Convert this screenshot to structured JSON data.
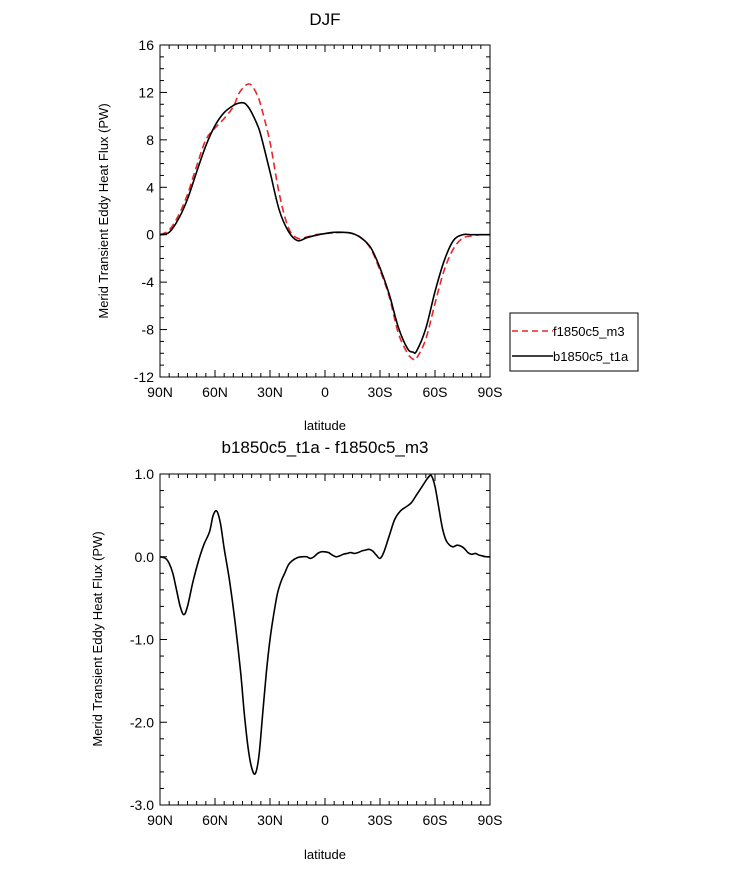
{
  "chart_data": [
    {
      "type": "line",
      "title": "DJF",
      "xlabel": "latitude",
      "ylabel": "Merid Transient Eddy Heat Flux (PW)",
      "xlim": [
        90,
        -90
      ],
      "ylim": [
        -12,
        16
      ],
      "x_ticks": [
        90,
        60,
        30,
        0,
        -30,
        -60,
        -90
      ],
      "x_tick_labels": [
        "90N",
        "60N",
        "30N",
        "0",
        "30S",
        "60S",
        "90S"
      ],
      "y_ticks": [
        -12,
        -8,
        -4,
        0,
        4,
        8,
        12,
        16
      ],
      "y_tick_labels": [
        "-12",
        "-8",
        "-4",
        "0",
        "4",
        "8",
        "12",
        "16"
      ],
      "legend_position": "right",
      "series": [
        {
          "name": "f1850c5_m3",
          "color": "#e8262a",
          "dash": "dashed",
          "x": [
            90,
            85,
            80,
            75,
            70,
            65,
            60,
            55,
            50,
            47,
            44,
            42,
            40,
            37,
            35,
            30,
            25,
            20,
            15,
            10,
            5,
            0,
            -5,
            -10,
            -15,
            -20,
            -25,
            -30,
            -35,
            -40,
            -45,
            -48,
            -50,
            -55,
            -60,
            -65,
            -70,
            -75,
            -80,
            -85,
            -90
          ],
          "y": [
            0,
            0.4,
            1.6,
            3.4,
            5.8,
            8,
            9,
            9.8,
            10.8,
            11.9,
            12.5,
            12.7,
            12.6,
            11.8,
            10.9,
            7.8,
            3.5,
            0.6,
            -0.3,
            -0.2,
            0,
            0.1,
            0.15,
            0.2,
            0.1,
            -0.3,
            -1.2,
            -3,
            -5.2,
            -8.3,
            -10,
            -10.5,
            -10.4,
            -8.8,
            -5.8,
            -3,
            -1.2,
            -0.3,
            -0.1,
            0,
            0
          ]
        },
        {
          "name": "b1850c5_t1a",
          "color": "#000000",
          "dash": "solid",
          "x": [
            90,
            85,
            80,
            75,
            70,
            65,
            60,
            55,
            50,
            47,
            44,
            42,
            40,
            37,
            35,
            30,
            25,
            20,
            15,
            10,
            5,
            0,
            -5,
            -10,
            -15,
            -20,
            -25,
            -30,
            -35,
            -40,
            -45,
            -48,
            -50,
            -55,
            -60,
            -65,
            -70,
            -75,
            -80,
            -85,
            -90
          ],
          "y": [
            0,
            0.2,
            1.3,
            3,
            5.3,
            7.5,
            9.2,
            10.3,
            10.9,
            11.1,
            11.1,
            10.8,
            10.3,
            9.3,
            8.4,
            5.3,
            2.1,
            0.3,
            -0.5,
            -0.25,
            -0.05,
            0.1,
            0.2,
            0.2,
            0.1,
            -0.3,
            -1.1,
            -2.8,
            -5,
            -7.8,
            -9.6,
            -9.9,
            -9.8,
            -7.9,
            -4.8,
            -2.2,
            -0.5,
            0,
            0,
            0,
            0
          ]
        }
      ]
    },
    {
      "type": "line",
      "title": "b1850c5_t1a - f1850c5_m3",
      "xlabel": "latitude",
      "ylabel": "Merid Transient Eddy Heat Flux (PW)",
      "xlim": [
        90,
        -90
      ],
      "ylim": [
        -3,
        1
      ],
      "x_ticks": [
        90,
        60,
        30,
        0,
        -30,
        -60,
        -90
      ],
      "x_tick_labels": [
        "90N",
        "60N",
        "30N",
        "0",
        "30S",
        "60S",
        "90S"
      ],
      "y_ticks": [
        -3,
        -2,
        -1,
        0,
        1
      ],
      "y_tick_labels": [
        "-3.0",
        "-2.0",
        "-1.0",
        "0.0",
        "1.0"
      ],
      "series": [
        {
          "color": "#000000",
          "dash": "solid",
          "x": [
            90,
            87,
            85,
            83,
            81,
            79,
            77,
            75,
            72,
            69,
            66,
            63,
            61,
            59,
            57,
            55,
            52,
            49,
            46,
            44,
            42,
            40,
            38,
            36,
            34,
            32,
            30,
            28,
            26,
            24,
            22,
            20,
            18,
            15,
            12,
            10,
            8,
            6,
            4,
            2,
            0,
            -2,
            -4,
            -6,
            -8,
            -10,
            -12,
            -14,
            -16,
            -18,
            -20,
            -22,
            -24,
            -26,
            -28,
            -30,
            -32,
            -35,
            -38,
            -41,
            -44,
            -47,
            -50,
            -53,
            -56,
            -58,
            -60,
            -62,
            -64,
            -66,
            -68,
            -70,
            -72,
            -74,
            -76,
            -78,
            -80,
            -82,
            -84,
            -86,
            -88,
            -90
          ],
          "y": [
            0,
            -0.02,
            -0.08,
            -0.2,
            -0.4,
            -0.6,
            -0.7,
            -0.6,
            -0.3,
            -0.05,
            0.15,
            0.3,
            0.5,
            0.55,
            0.4,
            0.1,
            -0.3,
            -0.8,
            -1.4,
            -1.9,
            -2.3,
            -2.55,
            -2.62,
            -2.4,
            -1.9,
            -1.4,
            -1,
            -0.7,
            -0.45,
            -0.3,
            -0.2,
            -0.1,
            -0.05,
            -0.01,
            0,
            0,
            -0.02,
            0,
            0.04,
            0.06,
            0.06,
            0.05,
            0.02,
            0,
            0.01,
            0.03,
            0.04,
            0.05,
            0.04,
            0.05,
            0.07,
            0.08,
            0.09,
            0.07,
            0.02,
            -0.02,
            0.05,
            0.25,
            0.45,
            0.55,
            0.6,
            0.65,
            0.75,
            0.85,
            0.95,
            0.98,
            0.85,
            0.6,
            0.35,
            0.2,
            0.14,
            0.12,
            0.14,
            0.13,
            0.1,
            0.05,
            0.03,
            0.04,
            0.02,
            0.01,
            0,
            0
          ]
        }
      ]
    }
  ]
}
